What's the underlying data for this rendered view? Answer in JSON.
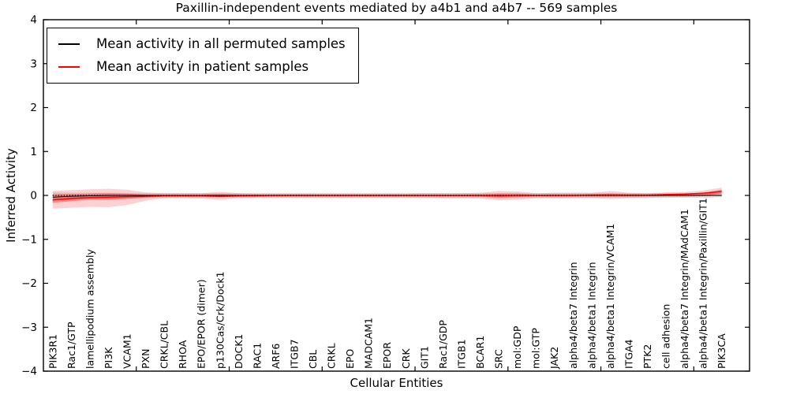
{
  "chart_data": {
    "type": "line",
    "title": "Paxillin-independent events mediated by a4b1 and a4b7 -- 569 samples",
    "xlabel": "Cellular Entities",
    "ylabel": "Inferred Activity",
    "ylim": [
      -4,
      4
    ],
    "ytick_values": [
      4,
      3,
      2,
      1,
      0,
      -1,
      -2,
      -3,
      -4
    ],
    "ytick_labels": [
      "4",
      "3",
      "2",
      "1",
      "0",
      "−1",
      "−2",
      "−3",
      "−4"
    ],
    "xtick_step": 5,
    "grid": false,
    "legend_position": "upper-left",
    "legend": [
      {
        "label": "Mean activity in all permuted samples",
        "color": "#000000"
      },
      {
        "label": "Mean activity in patient samples",
        "color": "#ff0000"
      }
    ],
    "categories": [
      "PIK3R1",
      "Rac1/GTP",
      "lamellipodium assembly",
      "PI3K",
      "VCAM1",
      "PXN",
      "CRKL/CBL",
      "RHOA",
      "EPO/EPOR (dimer)",
      "p130Cas/Crk/Dock1",
      "DOCK1",
      "RAC1",
      "ARF6",
      "ITGB7",
      "CBL",
      "CRKL",
      "EPO",
      "MADCAM1",
      "EPOR",
      "CRK",
      "GIT1",
      "Rac1/GDP",
      "ITGB1",
      "BCAR1",
      "SRC",
      "mol:GDP",
      "mol:GTP",
      "JAK2",
      "alpha4/beta7 Integrin",
      "alpha4/beta1 Integrin",
      "alpha4/beta1 Integrin/VCAM1",
      "ITGA4",
      "PTK2",
      "cell adhesion",
      "alpha4/beta7 Integrin/MAdCAM1",
      "alpha4/beta1 Integrin/Paxillin/GIT1",
      "PIK3CA"
    ],
    "series": [
      {
        "name": "Mean activity in all permuted samples",
        "color": "#000000",
        "width": 1.0,
        "dash": "",
        "values": [
          -0.04,
          -0.02,
          -0.01,
          0,
          0,
          0,
          0,
          0,
          0,
          0,
          0,
          0,
          0,
          0,
          0,
          0,
          0,
          0,
          0,
          0,
          0,
          0,
          0,
          0,
          0,
          0,
          0,
          0,
          0,
          0,
          0,
          0,
          0,
          0,
          0,
          0,
          0
        ]
      },
      {
        "name": "Mean activity in patient samples",
        "color": "#ff0000",
        "width": 1.5,
        "dash": "",
        "values": [
          -0.1,
          -0.07,
          -0.05,
          -0.04,
          -0.03,
          -0.02,
          -0.01,
          -0.01,
          -0.01,
          -0.02,
          -0.01,
          -0.01,
          0,
          0,
          0,
          0,
          0,
          0,
          0,
          0,
          0,
          0,
          0,
          0,
          -0.01,
          0,
          0,
          0,
          0,
          0.01,
          0.01,
          0.01,
          0.01,
          0.02,
          0.03,
          0.05,
          0.09
        ]
      },
      {
        "name": "zero reference",
        "color": "#000000",
        "width": 1.3,
        "dash": "1.3 2.2",
        "values": [
          0,
          0,
          0,
          0,
          0,
          0,
          0,
          0,
          0,
          0,
          0,
          0,
          0,
          0,
          0,
          0,
          0,
          0,
          0,
          0,
          0,
          0,
          0,
          0,
          0,
          0,
          0,
          0,
          0,
          0,
          0,
          0,
          0,
          0,
          0,
          0,
          0
        ]
      }
    ],
    "bands": [
      {
        "name": "permuted samples spread",
        "color": "rgba(0,0,0,0.12)",
        "hi": [
          0.07,
          0.06,
          0.06,
          0.06,
          0.055,
          0.055,
          0.055,
          0.055,
          0.055,
          0.055,
          0.055,
          0.055,
          0.055,
          0.055,
          0.055,
          0.055,
          0.055,
          0.055,
          0.055,
          0.055,
          0.055,
          0.055,
          0.055,
          0.055,
          0.055,
          0.055,
          0.055,
          0.055,
          0.055,
          0.055,
          0.055,
          0.055,
          0.055,
          0.055,
          0.055,
          0.055,
          0.06
        ],
        "lo": [
          -0.13,
          -0.1,
          -0.08,
          -0.07,
          -0.06,
          -0.055,
          -0.055,
          -0.055,
          -0.055,
          -0.055,
          -0.055,
          -0.055,
          -0.055,
          -0.055,
          -0.055,
          -0.055,
          -0.055,
          -0.055,
          -0.055,
          -0.055,
          -0.055,
          -0.055,
          -0.055,
          -0.055,
          -0.055,
          -0.055,
          -0.055,
          -0.055,
          -0.055,
          -0.055,
          -0.055,
          -0.055,
          -0.055,
          -0.055,
          -0.055,
          -0.055,
          -0.04
        ]
      },
      {
        "name": "patient spread outer",
        "color": "rgba(235,45,45,0.22)",
        "hi": [
          0.1,
          0.12,
          0.14,
          0.15,
          0.13,
          0.07,
          0.05,
          0.05,
          0.05,
          0.08,
          0.05,
          0.04,
          0.04,
          0.04,
          0.04,
          0.04,
          0.04,
          0.04,
          0.04,
          0.04,
          0.05,
          0.05,
          0.05,
          0.06,
          0.1,
          0.09,
          0.05,
          0.06,
          0.06,
          0.06,
          0.1,
          0.06,
          0.05,
          0.07,
          0.08,
          0.11,
          0.18
        ],
        "lo": [
          -0.3,
          -0.28,
          -0.26,
          -0.27,
          -0.22,
          -0.12,
          -0.06,
          -0.06,
          -0.07,
          -0.1,
          -0.06,
          -0.05,
          -0.05,
          -0.05,
          -0.05,
          -0.05,
          -0.05,
          -0.05,
          -0.05,
          -0.05,
          -0.05,
          -0.06,
          -0.06,
          -0.07,
          -0.11,
          -0.1,
          -0.06,
          -0.06,
          -0.06,
          -0.06,
          -0.08,
          -0.06,
          -0.05,
          -0.04,
          -0.04,
          -0.02,
          0.0
        ]
      },
      {
        "name": "patient spread inner",
        "color": "rgba(230,35,35,0.40)",
        "hi": [
          0.02,
          0.03,
          0.04,
          0.05,
          0.04,
          0.02,
          0.02,
          0.02,
          0.02,
          0.03,
          0.02,
          0.02,
          0.02,
          0.02,
          0.02,
          0.02,
          0.02,
          0.02,
          0.02,
          0.02,
          0.02,
          0.02,
          0.02,
          0.025,
          0.04,
          0.04,
          0.02,
          0.025,
          0.025,
          0.025,
          0.04,
          0.025,
          0.02,
          0.03,
          0.04,
          0.06,
          0.13
        ],
        "lo": [
          -0.17,
          -0.13,
          -0.1,
          -0.1,
          -0.08,
          -0.05,
          -0.03,
          -0.03,
          -0.03,
          -0.04,
          -0.03,
          -0.02,
          -0.02,
          -0.02,
          -0.02,
          -0.02,
          -0.02,
          -0.02,
          -0.02,
          -0.02,
          -0.02,
          -0.02,
          -0.02,
          -0.03,
          -0.05,
          -0.04,
          -0.02,
          -0.025,
          -0.025,
          -0.025,
          -0.03,
          -0.025,
          -0.02,
          -0.01,
          -0.01,
          0.0,
          0.04
        ]
      }
    ],
    "axis_color": "#000000",
    "background_color": "#ffffff"
  }
}
